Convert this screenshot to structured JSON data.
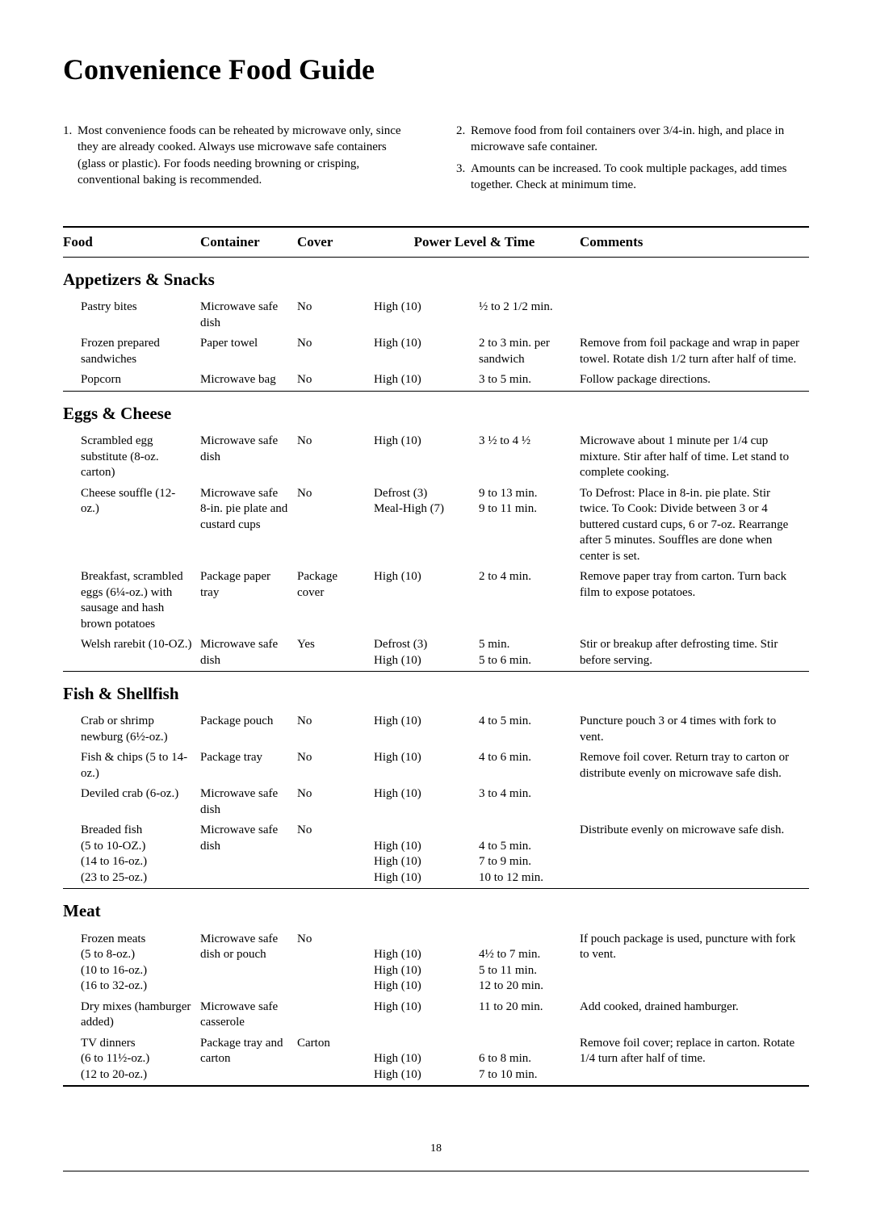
{
  "title": "Convenience Food Guide",
  "notes_left": [
    "Most convenience foods can be reheated by microwave only, since they are already cooked. Always use microwave safe containers (glass or plastic). For foods needing browning or crisping, conventional baking is recommended."
  ],
  "notes_right": [
    "Remove food from foil containers over 3/4-in. high, and place in microwave safe container.",
    "Amounts can be increased. To cook multiple packages, add times together. Check at minimum time."
  ],
  "headers": {
    "food": "Food",
    "container": "Container",
    "cover": "Cover",
    "power": "Power Level & Time",
    "comments": "Comments"
  },
  "sections": [
    {
      "title": "Appetizers & Snacks",
      "rows": [
        {
          "food": "Pastry bites",
          "container": "Microwave safe dish",
          "cover": "No",
          "power": [
            "High (10)"
          ],
          "time": [
            "½ to 2 1/2 min."
          ],
          "comments": ""
        },
        {
          "food": "Frozen prepared sandwiches",
          "container": "Paper towel",
          "cover": "No",
          "power": [
            "High (10)"
          ],
          "time": [
            "2 to 3 min. per sandwich"
          ],
          "comments": "Remove from foil package and wrap in paper towel. Rotate dish 1/2 turn after half of time."
        },
        {
          "food": "Popcorn",
          "container": "Microwave bag",
          "cover": "No",
          "power": [
            "High (10)"
          ],
          "time": [
            "3 to 5 min."
          ],
          "comments": "Follow package directions."
        }
      ]
    },
    {
      "title": "Eggs & Cheese",
      "rows": [
        {
          "food": "Scrambled egg substitute (8-oz. carton)",
          "container": "Microwave safe dish",
          "cover": "No",
          "power": [
            "High (10)"
          ],
          "time": [
            "3 ½ to 4 ½"
          ],
          "comments": "Microwave about 1 minute per 1/4 cup mixture. Stir after half of time. Let stand to complete cooking."
        },
        {
          "food": "Cheese souffle (12-oz.)",
          "container": "Microwave safe 8-in. pie plate and custard cups",
          "cover": "No",
          "power": [
            "Defrost (3)",
            "Meal-High (7)"
          ],
          "time": [
            "9 to 13 min.",
            "9 to 11 min."
          ],
          "comments": "To Defrost: Place in 8-in. pie plate. Stir twice. To Cook: Divide between 3 or 4 buttered custard cups, 6 or 7-oz. Rearrange after 5 minutes. Souffles are done when center is set."
        },
        {
          "food": "Breakfast, scrambled eggs (6¼-oz.) with sausage and hash brown potatoes",
          "container": "Package paper tray",
          "cover": "Package cover",
          "power": [
            "High (10)"
          ],
          "time": [
            "2 to 4 min."
          ],
          "comments": "Remove paper tray from carton. Turn back film to expose potatoes."
        },
        {
          "food": "Welsh rarebit (10-OZ.)",
          "container": "Microwave safe dish",
          "cover": "Yes",
          "power": [
            "Defrost (3)",
            "High (10)"
          ],
          "time": [
            "5 min.",
            "5 to 6 min."
          ],
          "comments": "Stir or breakup after defrosting time. Stir before serving."
        }
      ]
    },
    {
      "title": "Fish & Shellfish",
      "rows": [
        {
          "food": "Crab or shrimp newburg (6½-oz.)",
          "container": "Package pouch",
          "cover": "No",
          "power": [
            "High (10)"
          ],
          "time": [
            "4 to 5 min."
          ],
          "comments": "Puncture pouch 3 or 4 times with fork to vent."
        },
        {
          "food": "Fish & chips (5 to 14-oz.)",
          "container": "Package tray",
          "cover": "No",
          "power": [
            "High (10)"
          ],
          "time": [
            "4 to 6 min."
          ],
          "comments": "Remove foil cover. Return tray to carton or distribute evenly on microwave safe dish."
        },
        {
          "food": "Deviled crab (6-oz.)",
          "container": "Microwave safe dish",
          "cover": "No",
          "power": [
            "High (10)"
          ],
          "time": [
            "3 to 4 min."
          ],
          "comments": ""
        },
        {
          "food": "Breaded fish\n(5 to 10-OZ.)\n(14 to 16-oz.)\n(23 to 25-oz.)",
          "container": "Microwave safe dish",
          "cover": "No",
          "power": [
            "",
            "High (10)",
            "High (10)",
            "High (10)"
          ],
          "time": [
            "",
            "4 to 5 min.",
            "7 to 9 min.",
            "10 to 12 min."
          ],
          "comments": "Distribute evenly on microwave safe dish."
        }
      ]
    },
    {
      "title": "Meat",
      "rows": [
        {
          "food": "Frozen meats\n(5 to 8-oz.)\n(10 to 16-oz.)\n(16 to 32-oz.)",
          "container": "Microwave safe dish or pouch",
          "cover": "No",
          "power": [
            "",
            "High (10)",
            "High (10)",
            "High (10)"
          ],
          "time": [
            "",
            "4½ to 7 min.",
            "5 to 11 min.",
            "12 to 20 min."
          ],
          "comments": "If pouch package is used, puncture with fork to vent."
        },
        {
          "food": "Dry mixes (hamburger added)",
          "container": "Microwave safe casserole",
          "cover": "",
          "power": [
            "High (10)"
          ],
          "time": [
            "11 to 20 min."
          ],
          "comments": "Add cooked, drained hamburger."
        },
        {
          "food": "TV dinners\n(6 to 11½-oz.)\n(12 to 20-oz.)",
          "container": "Package tray and carton",
          "cover": "Carton",
          "power": [
            "",
            "High (10)",
            "High (10)"
          ],
          "time": [
            "",
            "6 to 8 min.",
            "7 to 10 min."
          ],
          "comments": "Remove foil cover; replace in carton. Rotate 1/4 turn after half of time."
        }
      ]
    }
  ],
  "page_number": "18"
}
